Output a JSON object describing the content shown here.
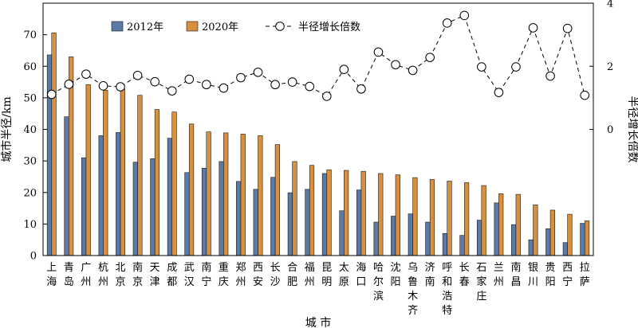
{
  "chart_data": {
    "type": "bar",
    "xlabel": "城 市",
    "ylabel": "城市半径/km",
    "y2label": "半径增长倍数",
    "ylim": [
      0,
      80
    ],
    "y2lim": [
      -4,
      4
    ],
    "yticks": [
      0,
      10,
      20,
      30,
      40,
      50,
      60,
      70
    ],
    "y2ticks": [
      0,
      2,
      4
    ],
    "legend_position": "top",
    "categories": [
      "上海",
      "青岛",
      "广州",
      "杭州",
      "北京",
      "南京",
      "天津",
      "成都",
      "武汉",
      "南宁",
      "重庆",
      "郑州",
      "西安",
      "长沙",
      "合肥",
      "福州",
      "昆明",
      "太原",
      "海口",
      "哈尔滨",
      "沈阳",
      "乌鲁木齐",
      "济南",
      "呼和浩特",
      "长春",
      "石家庄",
      "兰州",
      "南昌",
      "银川",
      "贵阳",
      "西宁",
      "拉萨"
    ],
    "series": [
      {
        "name": "2012年",
        "kind": "bar",
        "axis": "left",
        "color": "#5b7aa6",
        "values": [
          63.6,
          44,
          31,
          38,
          39,
          29.6,
          30.7,
          37.2,
          26.3,
          27.7,
          29.8,
          23.5,
          21,
          24.8,
          19.9,
          21,
          26,
          14.2,
          20.8,
          10.6,
          12.5,
          13.2,
          10.6,
          7,
          6.4,
          11.2,
          16.7,
          9.8,
          5,
          8.5,
          4.1,
          10.2
        ]
      },
      {
        "name": "2020年",
        "kind": "bar",
        "axis": "left",
        "color": "#d8903f",
        "values": [
          70.6,
          63,
          54.2,
          52.4,
          52.8,
          50.8,
          46.3,
          45.5,
          41.7,
          39.2,
          38.9,
          38.5,
          38,
          35.2,
          29.8,
          28.6,
          27.2,
          27,
          26.7,
          26,
          25.6,
          24.7,
          24.1,
          23.6,
          23.1,
          22.2,
          19.6,
          19.4,
          16.1,
          14.4,
          13.1,
          11
        ]
      },
      {
        "name": "半径增长倍数",
        "kind": "line",
        "axis": "right",
        "color": "#000000",
        "values": [
          1.11,
          1.43,
          1.75,
          1.38,
          1.35,
          1.71,
          1.51,
          1.22,
          1.59,
          1.42,
          1.31,
          1.64,
          1.81,
          1.42,
          1.5,
          1.36,
          1.05,
          1.9,
          1.28,
          2.45,
          2.05,
          1.87,
          2.28,
          3.37,
          3.61,
          1.98,
          1.17,
          1.98,
          3.22,
          1.69,
          3.2,
          1.08
        ]
      }
    ]
  }
}
